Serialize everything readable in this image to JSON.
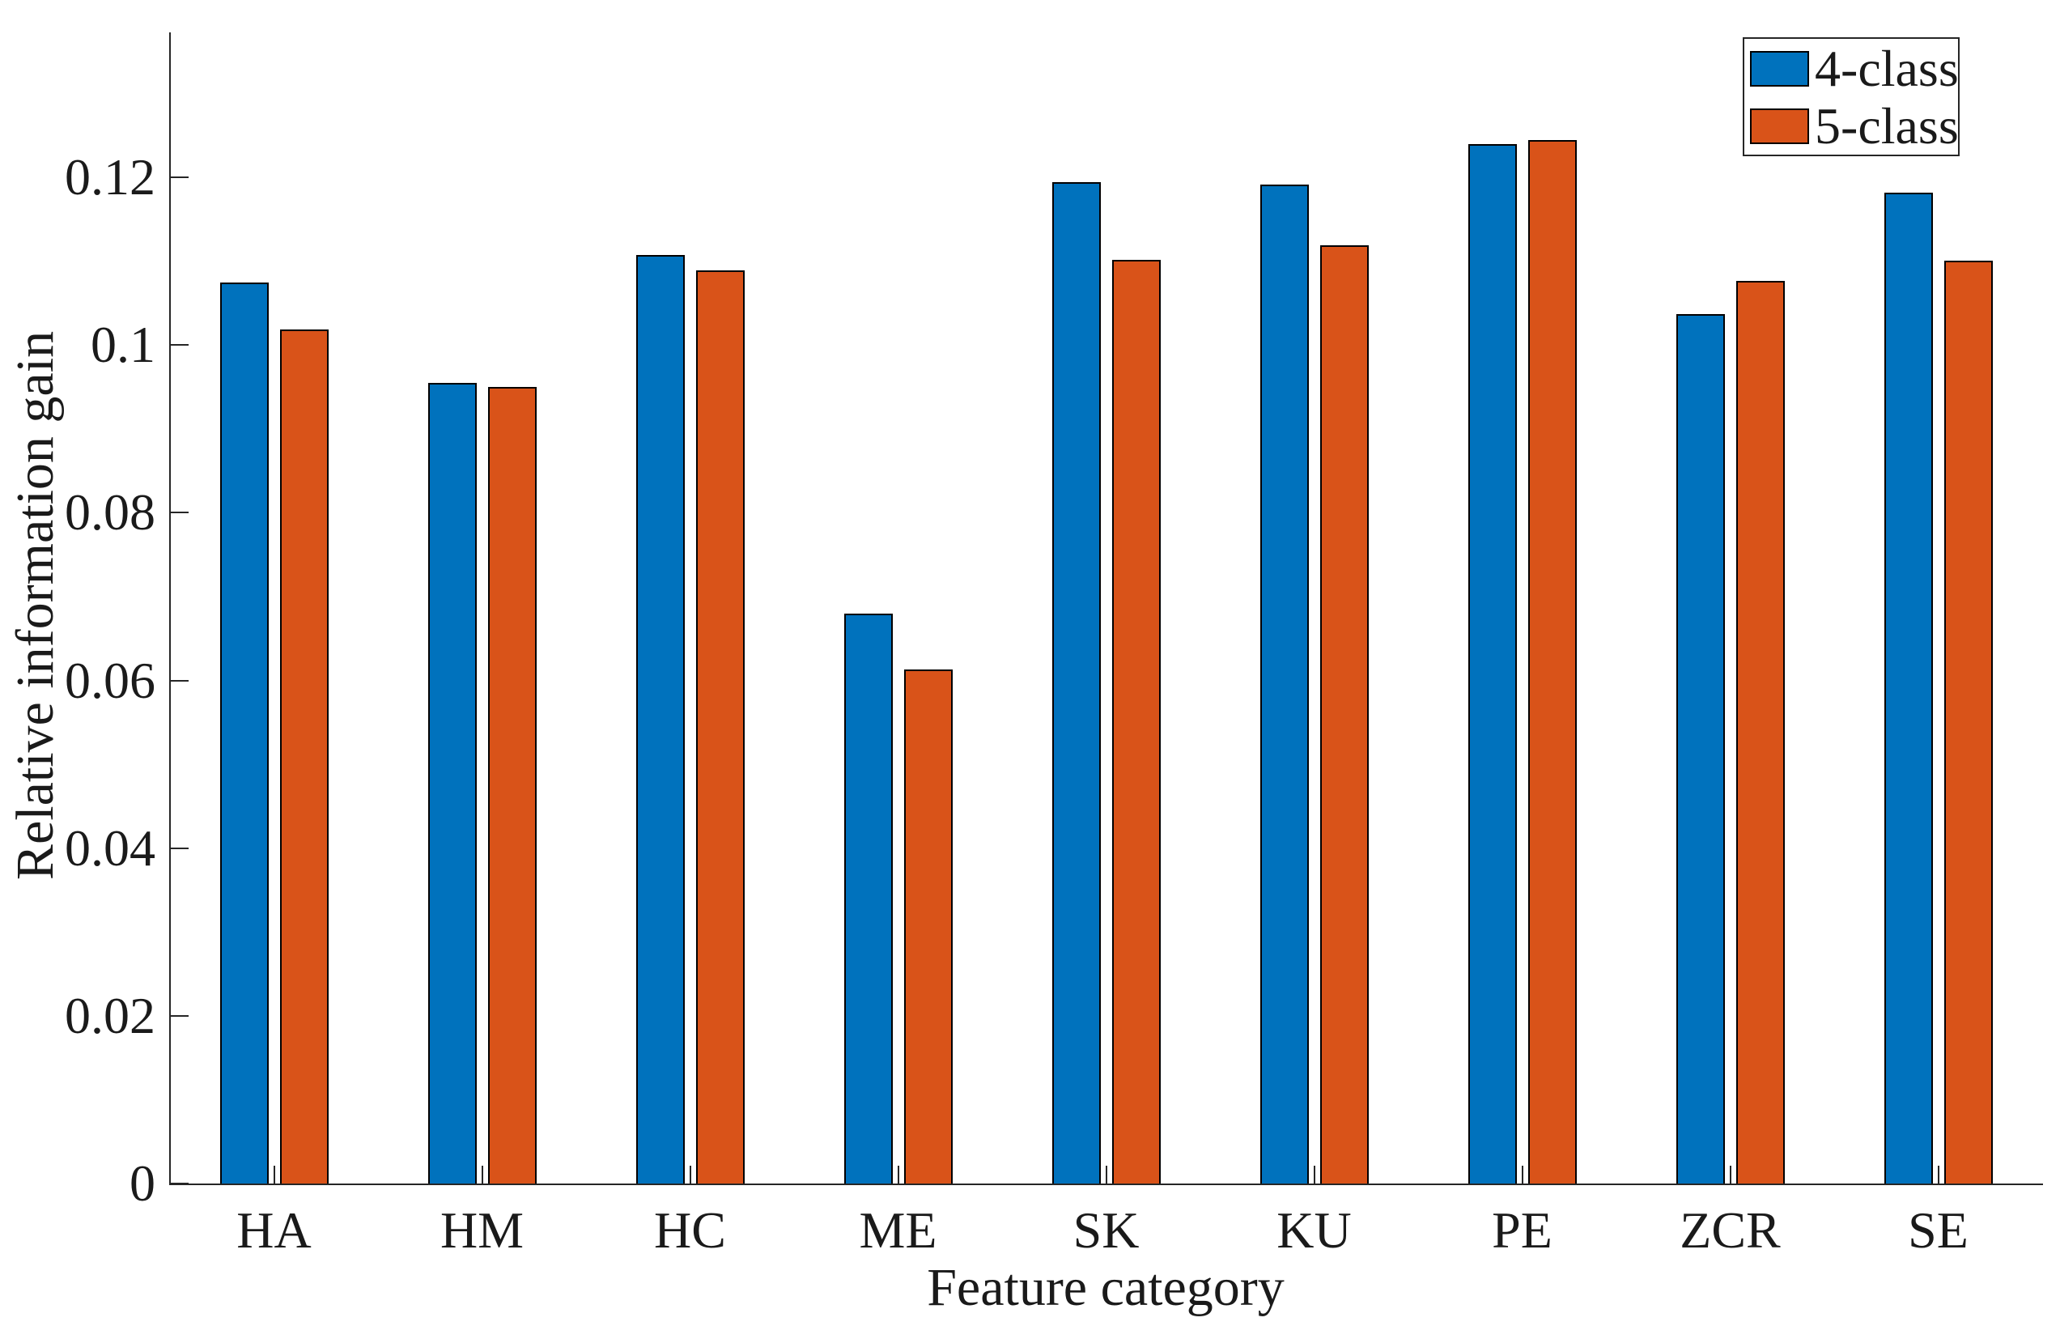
{
  "chart_data": {
    "type": "bar",
    "title": "",
    "xlabel": "Feature category",
    "ylabel": "Relative information gain",
    "categories": [
      "HA",
      "HM",
      "HC",
      "ME",
      "SK",
      "KU",
      "PE",
      "ZCR",
      "SE"
    ],
    "series": [
      {
        "name": "4-class",
        "color": "#0072BD",
        "values": [
          0.1075,
          0.0955,
          0.1107,
          0.068,
          0.1194,
          0.1191,
          0.124,
          0.1037,
          0.1182
        ]
      },
      {
        "name": "5-class",
        "color": "#D95319",
        "values": [
          0.1019,
          0.095,
          0.1089,
          0.0613,
          0.1102,
          0.1119,
          0.1245,
          0.1077,
          0.1101
        ]
      }
    ],
    "ylim": [
      0,
      0.1373
    ],
    "yticks": [
      0,
      0.02,
      0.04,
      0.06,
      0.08,
      0.1,
      0.12
    ],
    "ytick_labels": [
      "0",
      "0.02",
      "0.04",
      "0.06",
      "0.08",
      "0.1",
      "0.12"
    ],
    "grid": false,
    "legend_position": "top-right",
    "bar_edge_color": "#000000",
    "axis_color": "#262626",
    "colors": {
      "series_blue": "#0072BD",
      "series_orange": "#D95319"
    }
  }
}
